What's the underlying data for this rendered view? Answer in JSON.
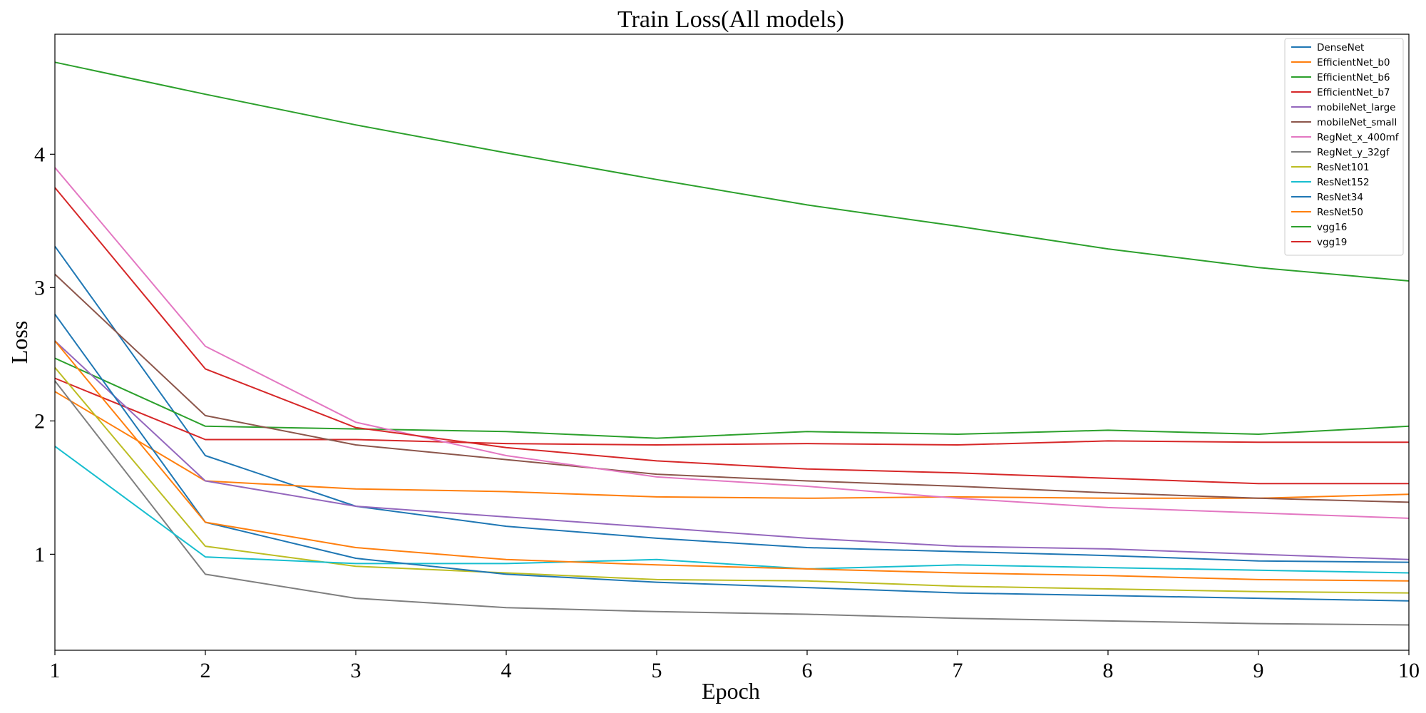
{
  "chart_data": {
    "type": "line",
    "title": "Train Loss(All models)",
    "xlabel": "Epoch",
    "ylabel": "Loss",
    "xlim": [
      1,
      10
    ],
    "ylim": [
      0.28,
      4.9
    ],
    "x": [
      1,
      2,
      3,
      4,
      5,
      6,
      7,
      8,
      9,
      10
    ],
    "x_ticks": [
      "1",
      "2",
      "3",
      "4",
      "5",
      "6",
      "7",
      "8",
      "9",
      "10"
    ],
    "y_ticks": [
      1,
      2,
      3,
      4
    ],
    "y_tick_labels": [
      "1",
      "2",
      "3",
      "4"
    ],
    "grid": false,
    "legend_position": "top-right",
    "series": [
      {
        "name": "DenseNet",
        "color": "#1f77b4",
        "values": [
          3.31,
          1.74,
          1.36,
          1.21,
          1.12,
          1.05,
          1.02,
          0.99,
          0.95,
          0.94
        ]
      },
      {
        "name": "EfficientNet_b0",
        "color": "#ff7f0e",
        "values": [
          2.22,
          1.55,
          1.49,
          1.47,
          1.43,
          1.42,
          1.43,
          1.42,
          1.42,
          1.45
        ]
      },
      {
        "name": "EfficientNet_b6",
        "color": "#2ca02c",
        "values": [
          2.47,
          1.96,
          1.94,
          1.92,
          1.87,
          1.92,
          1.9,
          1.93,
          1.9,
          1.96
        ]
      },
      {
        "name": "EfficientNet_b7",
        "color": "#d62728",
        "values": [
          2.32,
          1.86,
          1.86,
          1.83,
          1.82,
          1.83,
          1.82,
          1.85,
          1.84,
          1.84
        ]
      },
      {
        "name": "mobileNet_large",
        "color": "#9467bd",
        "values": [
          2.6,
          1.55,
          1.36,
          1.28,
          1.2,
          1.12,
          1.06,
          1.04,
          1.0,
          0.96
        ]
      },
      {
        "name": "mobileNet_small",
        "color": "#8c564b",
        "values": [
          3.1,
          2.04,
          1.82,
          1.71,
          1.6,
          1.55,
          1.51,
          1.46,
          1.42,
          1.39
        ]
      },
      {
        "name": "RegNet_x_400mf",
        "color": "#e377c2",
        "values": [
          3.9,
          2.56,
          1.99,
          1.74,
          1.58,
          1.51,
          1.42,
          1.35,
          1.31,
          1.27
        ]
      },
      {
        "name": "RegNet_y_32gf",
        "color": "#7f7f7f",
        "values": [
          2.3,
          0.85,
          0.67,
          0.6,
          0.57,
          0.55,
          0.52,
          0.5,
          0.48,
          0.47
        ]
      },
      {
        "name": "ResNet101",
        "color": "#bcbd22",
        "values": [
          2.4,
          1.06,
          0.91,
          0.86,
          0.81,
          0.8,
          0.76,
          0.74,
          0.72,
          0.71
        ]
      },
      {
        "name": "ResNet152",
        "color": "#17becf",
        "values": [
          1.81,
          0.98,
          0.93,
          0.93,
          0.96,
          0.89,
          0.92,
          0.9,
          0.88,
          0.86
        ]
      },
      {
        "name": "ResNet34",
        "color": "#1f77b4",
        "values": [
          2.8,
          1.24,
          0.97,
          0.85,
          0.79,
          0.75,
          0.71,
          0.69,
          0.67,
          0.65
        ]
      },
      {
        "name": "ResNet50",
        "color": "#ff7f0e",
        "values": [
          2.6,
          1.24,
          1.05,
          0.96,
          0.92,
          0.89,
          0.86,
          0.84,
          0.81,
          0.8
        ]
      },
      {
        "name": "vgg16",
        "color": "#2ca02c",
        "values": [
          4.69,
          4.45,
          4.22,
          4.01,
          3.81,
          3.62,
          3.46,
          3.29,
          3.15,
          3.05
        ]
      },
      {
        "name": "vgg19",
        "color": "#d62728",
        "values": [
          3.75,
          2.39,
          1.95,
          1.8,
          1.7,
          1.64,
          1.61,
          1.57,
          1.53,
          1.53
        ]
      }
    ]
  }
}
